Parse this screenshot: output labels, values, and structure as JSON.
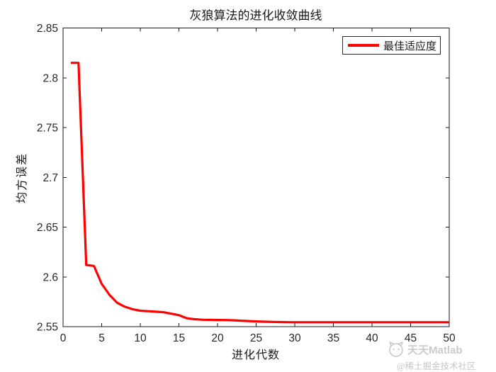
{
  "colors": {
    "line": "#ff0000",
    "axis": "#1a1a1a",
    "text": "#262626",
    "watermark": "#c9c9c9",
    "background": "#ffffff"
  },
  "legend": {
    "label": "最佳适应度",
    "line_color": "#ff0000",
    "position": "upper right"
  },
  "watermark": {
    "line1": "天天Matlab",
    "line2": "@稀土掘金技术社区"
  },
  "chart_data": {
    "type": "line",
    "title": "灰狼算法的进化收敛曲线",
    "xlabel": "进化代数",
    "ylabel": "均方误差",
    "xlim": [
      0,
      50
    ],
    "ylim": [
      2.55,
      2.85
    ],
    "xticks": [
      0,
      5,
      10,
      15,
      20,
      25,
      30,
      35,
      40,
      45,
      50
    ],
    "xtick_labels": [
      "0",
      "5",
      "10",
      "15",
      "20",
      "25",
      "30",
      "35",
      "40",
      "45",
      "50"
    ],
    "yticks": [
      2.55,
      2.6,
      2.65,
      2.7,
      2.75,
      2.8,
      2.85
    ],
    "ytick_labels": [
      "2.55",
      "2.6",
      "2.65",
      "2.7",
      "2.75",
      "2.8",
      "2.85"
    ],
    "grid": false,
    "legend_position": "upper right",
    "series": [
      {
        "name": "最佳适应度",
        "color": "#ff0000",
        "line_width": 3.2,
        "x": [
          1,
          2,
          3,
          4,
          5,
          6,
          7,
          8,
          9,
          10,
          11,
          12,
          13,
          14,
          15,
          16,
          17,
          18,
          19,
          20,
          21,
          22,
          23,
          24,
          25,
          26,
          27,
          28,
          29,
          30,
          31,
          32,
          33,
          34,
          35,
          36,
          37,
          38,
          39,
          40,
          41,
          42,
          43,
          44,
          45,
          46,
          47,
          48,
          49,
          50
        ],
        "y": [
          2.815,
          2.815,
          2.612,
          2.611,
          2.593,
          2.582,
          2.574,
          2.57,
          2.5675,
          2.566,
          2.5655,
          2.565,
          2.5645,
          2.563,
          2.5615,
          2.5585,
          2.5575,
          2.557,
          2.5568,
          2.5567,
          2.5566,
          2.5564,
          2.556,
          2.5556,
          2.5553,
          2.555,
          2.5548,
          2.5546,
          2.5545,
          2.5544,
          2.5544,
          2.5544,
          2.5544,
          2.5544,
          2.5544,
          2.5544,
          2.5544,
          2.5544,
          2.5544,
          2.5544,
          2.5544,
          2.5544,
          2.5544,
          2.5544,
          2.5544,
          2.5544,
          2.5544,
          2.5544,
          2.5544,
          2.5544
        ]
      }
    ]
  }
}
